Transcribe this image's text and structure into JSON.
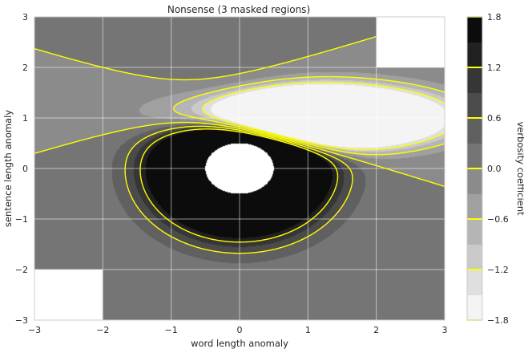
{
  "chart_data": {
    "type": "heatmap",
    "subtype": "filled-contour",
    "title": "Nonsense (3 masked regions)",
    "xlabel": "word length anomaly",
    "ylabel": "sentence length anomaly",
    "xlim": [
      -3,
      3
    ],
    "ylim": [
      -3,
      3
    ],
    "xticks": [
      -3,
      -2,
      -1,
      0,
      1,
      2,
      3
    ],
    "yticks": [
      -3,
      -2,
      -1,
      0,
      1,
      2,
      3
    ],
    "xtick_labels": [
      "−3",
      "−2",
      "−1",
      "0",
      "1",
      "2",
      "3"
    ],
    "ytick_labels": [
      "−3",
      "−2",
      "−1",
      "0",
      "1",
      "2",
      "3"
    ],
    "grid": true,
    "colormap": "gray",
    "color_low": "#f4f4f4",
    "color_high": "#0c0c0c",
    "level_edges": [
      -1.8,
      -1.5,
      -1.2,
      -0.9,
      -0.6,
      -0.3,
      0.0,
      0.3,
      0.6,
      0.9,
      1.2,
      1.5,
      1.8
    ],
    "contour_lines": {
      "levels": [
        -1.2,
        -0.6,
        0.0,
        0.6,
        1.2
      ],
      "color": "#ffff00",
      "negative_linestyle": "dashed"
    },
    "field": {
      "description": "Z = 10 * (Z2 - Z1)",
      "minimum": {
        "x": 1.0,
        "y": 1.0,
        "sigma_x": 1.5,
        "sigma_y": 0.5,
        "weight": 1.0
      },
      "maximum": {
        "x": 0.0,
        "y": 0.0,
        "sigma_x": 1.0,
        "sigma_y": 1.0,
        "weight": 1.0
      }
    },
    "masked_regions": [
      {
        "shape": "rectangle",
        "x": [
          2,
          3
        ],
        "y": [
          2,
          3
        ]
      },
      {
        "shape": "rectangle",
        "x": [
          -3,
          -2
        ],
        "y": [
          -3,
          -2
        ]
      },
      {
        "shape": "circle",
        "center": [
          0,
          0
        ],
        "radius": 0.5
      }
    ],
    "colorbar": {
      "label": "verbosity coefficient",
      "ticks": [
        1.8,
        1.2,
        0.6,
        0.0,
        -0.6,
        -1.2,
        -1.8
      ],
      "tick_labels": [
        "1.8",
        "1.2",
        "0.6",
        "0.0",
        "−0.6",
        "−1.2",
        "−1.8"
      ]
    }
  }
}
